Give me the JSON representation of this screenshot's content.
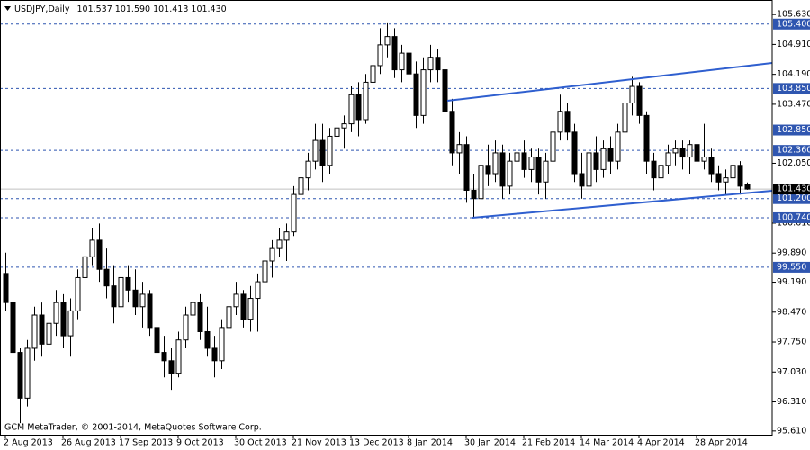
{
  "chart_data": {
    "type": "candlestick",
    "title": "USDJPY,Daily",
    "quote": "101.537 101.590 101.413 101.430",
    "footer": "GCM MetaTrader, © 2001-2014, MetaQuotes Software Corp.",
    "categories": [
      "2 Aug 2013",
      null,
      null,
      null,
      null,
      null,
      null,
      null,
      "26 Aug 2013",
      null,
      null,
      null,
      null,
      null,
      null,
      null,
      "17 Sep 2013",
      null,
      null,
      null,
      null,
      null,
      null,
      null,
      "9 Oct 2013",
      null,
      null,
      null,
      null,
      null,
      null,
      null,
      "30 Oct 2013",
      null,
      null,
      null,
      null,
      null,
      null,
      null,
      "21 Nov 2013",
      null,
      null,
      null,
      null,
      null,
      null,
      null,
      "13 Dec 2013",
      null,
      null,
      null,
      null,
      null,
      null,
      null,
      "8 Jan 2014",
      null,
      null,
      null,
      null,
      null,
      null,
      null,
      "30 Jan 2014",
      null,
      null,
      null,
      null,
      null,
      null,
      null,
      "21 Feb 2014",
      null,
      null,
      null,
      null,
      null,
      null,
      null,
      "14 Mar 2014",
      null,
      null,
      null,
      null,
      null,
      null,
      null,
      "4 Apr 2014",
      null,
      null,
      null,
      null,
      null,
      null,
      null,
      "28 Apr 2014",
      null,
      null,
      null,
      null,
      null,
      null,
      null
    ],
    "open": [
      99.4,
      98.7,
      97.5,
      96.4,
      97.6,
      98.4,
      97.7,
      98.2,
      98.7,
      97.9,
      98.5,
      99.3,
      99.8,
      100.2,
      99.5,
      99.1,
      98.6,
      99.3,
      99.0,
      98.6,
      98.9,
      98.1,
      97.5,
      97.3,
      97.0,
      97.8,
      98.4,
      98.7,
      98.0,
      97.6,
      97.3,
      98.1,
      98.6,
      98.9,
      98.3,
      98.8,
      99.2,
      99.7,
      100.0,
      100.2,
      100.4,
      101.3,
      101.7,
      102.1,
      102.6,
      102.0,
      102.7,
      102.9,
      103.0,
      103.7,
      103.1,
      104.0,
      104.4,
      104.9,
      105.1,
      104.3,
      104.7,
      104.2,
      103.2,
      104.3,
      104.6,
      104.3,
      103.3,
      102.3,
      102.5,
      101.4,
      101.2,
      102.0,
      101.8,
      102.3,
      101.5,
      102.1,
      102.3,
      101.9,
      102.2,
      101.6,
      102.1,
      102.8,
      103.3,
      102.8,
      101.8,
      101.5,
      102.3,
      101.9,
      102.4,
      102.1,
      102.8,
      103.5,
      103.9,
      103.2,
      102.1,
      101.7,
      102.0,
      102.3,
      102.4,
      102.2,
      102.5,
      102.1,
      102.2,
      101.8,
      101.6,
      101.7,
      102.0,
      101.537
    ],
    "high": [
      99.9,
      98.9,
      97.6,
      97.8,
      98.6,
      98.7,
      98.5,
      99.0,
      98.9,
      98.8,
      99.5,
      100.0,
      100.5,
      100.6,
      100.0,
      99.6,
      99.5,
      99.6,
      99.5,
      99.2,
      99.0,
      98.4,
      97.9,
      97.6,
      98.0,
      98.6,
      98.9,
      98.9,
      98.6,
      97.9,
      98.3,
      98.8,
      99.2,
      99.0,
      99.1,
      99.4,
      99.9,
      100.2,
      100.5,
      100.6,
      101.5,
      101.9,
      102.3,
      103.0,
      103.0,
      102.9,
      103.3,
      103.2,
      103.9,
      104.0,
      104.2,
      104.6,
      105.3,
      105.44,
      105.3,
      104.9,
      104.9,
      104.5,
      104.6,
      104.9,
      104.8,
      104.4,
      103.6,
      102.8,
      102.7,
      101.8,
      102.2,
      102.5,
      102.6,
      102.5,
      102.3,
      102.6,
      102.6,
      102.4,
      102.4,
      102.3,
      103.0,
      103.7,
      103.5,
      103.0,
      102.3,
      102.5,
      102.7,
      102.6,
      102.7,
      103.0,
      103.7,
      104.13,
      104.0,
      103.3,
      102.3,
      102.2,
      102.5,
      102.6,
      102.6,
      102.6,
      102.8,
      103.0,
      102.4,
      102.0,
      101.9,
      102.2,
      102.1,
      101.59
    ],
    "low": [
      98.5,
      97.3,
      95.8,
      96.2,
      97.3,
      97.4,
      97.2,
      97.9,
      97.6,
      97.4,
      98.3,
      99.0,
      99.6,
      99.2,
      98.8,
      98.2,
      98.3,
      98.7,
      98.4,
      98.1,
      97.9,
      97.2,
      96.9,
      96.6,
      96.9,
      97.6,
      98.0,
      97.8,
      97.4,
      96.9,
      97.1,
      97.9,
      98.4,
      98.1,
      98.0,
      98.0,
      99.0,
      99.3,
      99.8,
      99.7,
      100.3,
      101.0,
      101.4,
      101.9,
      101.6,
      101.8,
      102.2,
      102.4,
      102.8,
      102.7,
      103.0,
      103.8,
      104.2,
      104.6,
      104.1,
      104.0,
      103.9,
      102.9,
      103.0,
      104.0,
      104.0,
      103.0,
      102.0,
      101.8,
      101.1,
      100.76,
      101.0,
      101.5,
      101.6,
      101.2,
      101.3,
      101.9,
      101.7,
      101.6,
      101.3,
      101.2,
      101.9,
      102.6,
      102.6,
      101.6,
      101.2,
      101.2,
      101.6,
      101.7,
      101.8,
      101.9,
      102.7,
      103.2,
      103.0,
      101.8,
      101.4,
      101.4,
      101.8,
      102.0,
      101.9,
      101.8,
      101.9,
      101.9,
      101.6,
      101.4,
      101.3,
      101.5,
      101.3,
      101.413
    ],
    "close": [
      98.7,
      97.5,
      96.4,
      97.6,
      98.4,
      97.7,
      98.2,
      98.7,
      97.9,
      98.5,
      99.3,
      99.8,
      100.2,
      99.5,
      99.1,
      98.6,
      99.3,
      99.0,
      98.6,
      98.9,
      98.1,
      97.5,
      97.3,
      97.0,
      97.8,
      98.4,
      98.7,
      98.0,
      97.6,
      97.3,
      98.1,
      98.6,
      98.9,
      98.3,
      98.8,
      99.2,
      99.7,
      100.0,
      100.2,
      100.4,
      101.3,
      101.7,
      102.1,
      102.6,
      102.0,
      102.7,
      102.9,
      103.0,
      103.7,
      103.1,
      104.0,
      104.4,
      104.9,
      105.1,
      104.3,
      104.7,
      104.2,
      103.2,
      104.3,
      104.6,
      104.3,
      103.3,
      102.3,
      102.5,
      101.4,
      101.2,
      102.0,
      101.8,
      102.3,
      101.5,
      102.1,
      102.3,
      101.9,
      102.2,
      101.6,
      102.1,
      102.8,
      103.3,
      102.8,
      101.8,
      101.5,
      102.3,
      101.9,
      102.4,
      102.1,
      102.8,
      103.5,
      103.9,
      103.2,
      102.1,
      101.7,
      102.0,
      102.3,
      102.4,
      102.2,
      102.5,
      102.1,
      102.2,
      101.8,
      101.6,
      101.7,
      102.0,
      101.5,
      101.43
    ],
    "up_color": "#ffffff",
    "down_color": "#000000",
    "ylim": [
      95.52,
      105.98
    ],
    "yticks": [
      {
        "value": 105.63,
        "label": "105.630"
      },
      {
        "value": 104.91,
        "label": "104.910"
      },
      {
        "value": 104.19,
        "label": "104.190"
      },
      {
        "value": 103.47,
        "label": "103.470"
      },
      {
        "value": 102.05,
        "label": "102.050"
      },
      {
        "value": 100.61,
        "label": "100.610"
      },
      {
        "value": 99.89,
        "label": "99.890"
      },
      {
        "value": 99.19,
        "label": "99.190"
      },
      {
        "value": 98.47,
        "label": "98.470"
      },
      {
        "value": 97.75,
        "label": "97.750"
      },
      {
        "value": 97.03,
        "label": "97.030"
      },
      {
        "value": 96.31,
        "label": "96.310"
      },
      {
        "value": 95.61,
        "label": "95.610"
      }
    ],
    "levels": [
      {
        "value": 105.4,
        "label": "105.400"
      },
      {
        "value": 103.85,
        "label": "103.850"
      },
      {
        "value": 102.85,
        "label": "102.850"
      },
      {
        "value": 102.36,
        "label": "102.360"
      },
      {
        "value": 101.2,
        "label": "101.200"
      },
      {
        "value": 100.74,
        "label": "100.740"
      },
      {
        "value": 99.55,
        "label": "99.550"
      }
    ],
    "level_color": "#2f56b0",
    "last_price": {
      "value": 101.43,
      "label": "101.430"
    },
    "last_price_color": "#000000"
  }
}
